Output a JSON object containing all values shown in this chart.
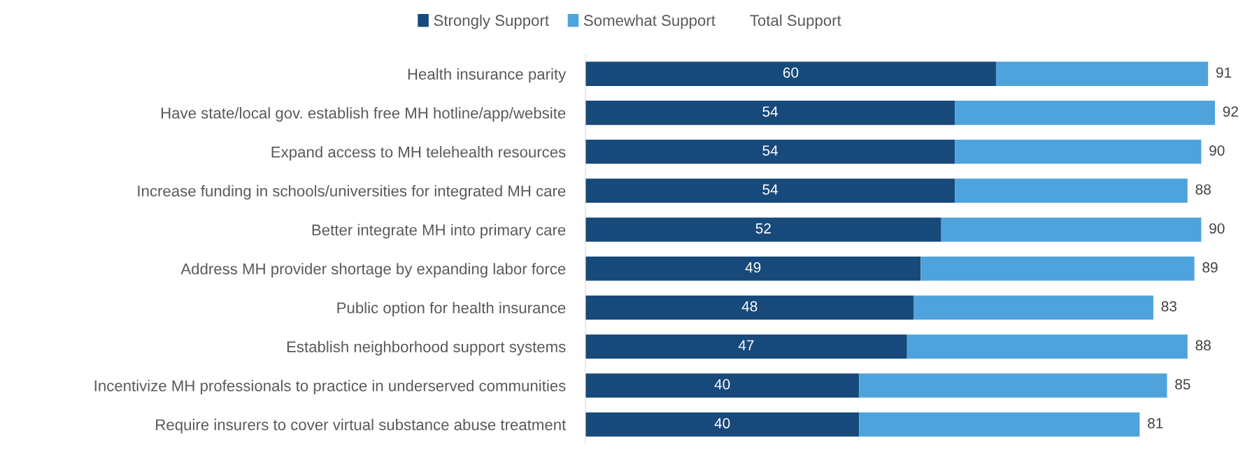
{
  "chart_data": {
    "type": "bar",
    "orientation": "horizontal",
    "stacked": true,
    "legend": "top",
    "tick_labels": "y",
    "categories": [
      "Health insurance parity",
      "Have state/local gov. establish free MH hotline/app/website",
      "Expand access to MH telehealth resources",
      "Increase funding in schools/universities for integrated MH care",
      "Better integrate MH into primary care",
      "Address MH provider shortage by expanding labor force",
      "Public option for health insurance",
      "Establish neighborhood support systems",
      "Incentivize MH professionals to practice in underserved communities",
      "Require insurers to cover virtual substance abuse treatment"
    ],
    "series": [
      {
        "name": "Strongly Support",
        "color": "#17497a",
        "values": [
          60,
          54,
          54,
          54,
          52,
          49,
          48,
          47,
          40,
          40
        ],
        "value_labels": [
          "60",
          "54",
          "54",
          "54",
          "52",
          "49",
          "48",
          "47",
          "40",
          "40"
        ]
      },
      {
        "name": "Somewhat Support",
        "color": "#4fa3dc",
        "values": [
          31,
          38,
          36,
          34,
          38,
          40,
          35,
          41,
          45,
          41
        ]
      },
      {
        "name": "Total Support",
        "color": null,
        "values": [
          null,
          null,
          null,
          null,
          null,
          null,
          null,
          null,
          null,
          null
        ]
      }
    ],
    "totals": [
      "91",
      "92",
      "90",
      "88",
      "90",
      "89",
      "83",
      "88",
      "85",
      "81"
    ]
  }
}
